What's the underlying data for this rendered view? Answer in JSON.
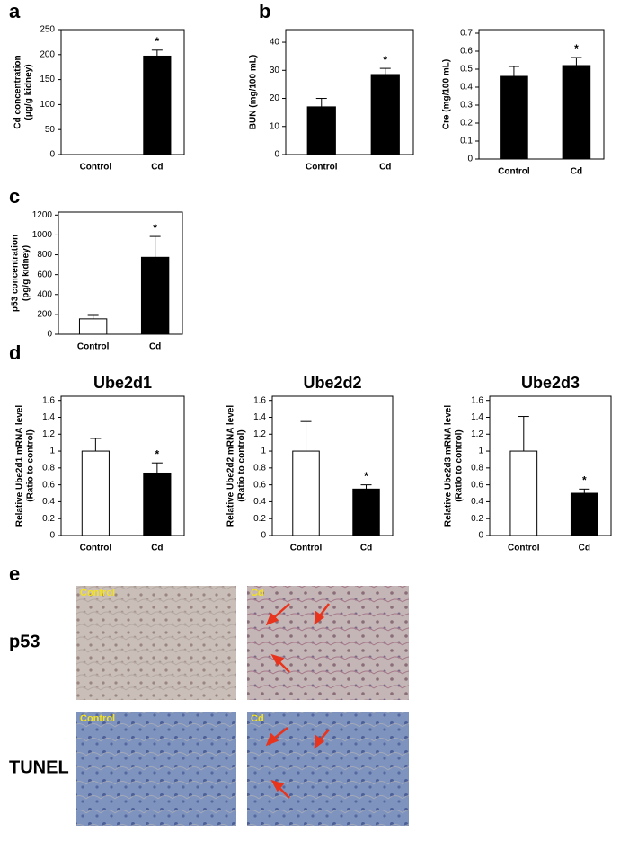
{
  "figure": {
    "panels": [
      "a",
      "b",
      "c",
      "d",
      "e"
    ]
  },
  "chart_data": [
    {
      "type": "bar",
      "ylabel": [
        "Cd concentration",
        "(μg/g kidney)"
      ],
      "categories": [
        "Control",
        "Cd"
      ],
      "values": [
        0,
        197
      ],
      "errors": [
        null,
        12
      ],
      "colors": [
        "#ffffff",
        "#000000"
      ],
      "ylim": [
        0,
        250
      ],
      "yticks": [
        0,
        50,
        100,
        150,
        200,
        250
      ],
      "annotations": [
        {
          "text": "*",
          "category": "Cd"
        }
      ]
    },
    {
      "type": "bar",
      "ylabel": [
        "BUN (mg/100 mL)"
      ],
      "categories": [
        "Control",
        "Cd"
      ],
      "values": [
        17,
        28.5
      ],
      "errors": [
        3,
        2.2
      ],
      "colors": [
        "#000000",
        "#000000"
      ],
      "ylim": [
        0,
        44.5
      ],
      "yticks": [
        0,
        10,
        20,
        30,
        40
      ],
      "annotations": [
        {
          "text": "*",
          "category": "Cd"
        }
      ]
    },
    {
      "type": "bar",
      "ylabel": [
        "Cre (mg/100 mL)"
      ],
      "categories": [
        "Control",
        "Cd"
      ],
      "values": [
        0.46,
        0.52
      ],
      "errors": [
        0.055,
        0.045
      ],
      "colors": [
        "#000000",
        "#000000"
      ],
      "ylim": [
        0,
        0.72
      ],
      "yticks": [
        0,
        0.1,
        0.2,
        0.3,
        0.4,
        0.5,
        0.6,
        0.7
      ],
      "annotations": [
        {
          "text": "*",
          "category": "Cd"
        }
      ]
    },
    {
      "type": "bar",
      "ylabel": [
        "p53 concentration",
        "(pg/g kidney)"
      ],
      "categories": [
        "Control",
        "Cd"
      ],
      "values": [
        155,
        775
      ],
      "errors": [
        35,
        210
      ],
      "colors": [
        "#ffffff",
        "#000000"
      ],
      "ylim": [
        0,
        1230
      ],
      "yticks": [
        0,
        200,
        400,
        600,
        800,
        1000,
        1200
      ],
      "annotations": [
        {
          "text": "*",
          "category": "Cd"
        }
      ]
    },
    {
      "type": "bar",
      "title": "Ube2d1",
      "ylabel": [
        "Relative Ube2d1 mRNA level",
        "(Ratio to control)"
      ],
      "categories": [
        "Control",
        "Cd"
      ],
      "values": [
        1,
        0.74
      ],
      "errors": [
        0.15,
        0.12
      ],
      "colors": [
        "#ffffff",
        "#000000"
      ],
      "ylim": [
        0,
        1.65
      ],
      "yticks": [
        0,
        0.2,
        0.4,
        0.6,
        0.8,
        1,
        1.2,
        1.4,
        1.6
      ],
      "annotations": [
        {
          "text": "*",
          "category": "Cd"
        }
      ]
    },
    {
      "type": "bar",
      "title": "Ube2d2",
      "ylabel": [
        "Relative Ube2d2 mRNA level",
        "(Ratio to control)"
      ],
      "categories": [
        "Control",
        "Cd"
      ],
      "values": [
        1,
        0.55
      ],
      "errors": [
        0.35,
        0.05
      ],
      "colors": [
        "#ffffff",
        "#000000"
      ],
      "ylim": [
        0,
        1.65
      ],
      "yticks": [
        0,
        0.2,
        0.4,
        0.6,
        0.8,
        1,
        1.2,
        1.4,
        1.6
      ],
      "annotations": [
        {
          "text": "*",
          "category": "Cd"
        }
      ]
    },
    {
      "type": "bar",
      "title": "Ube2d3",
      "ylabel": [
        "Relative Ube2d3 mRNA level",
        "(Ratio to control)"
      ],
      "categories": [
        "Control",
        "Cd"
      ],
      "values": [
        1,
        0.5
      ],
      "errors": [
        0.41,
        0.05
      ],
      "colors": [
        "#ffffff",
        "#000000"
      ],
      "ylim": [
        0,
        1.65
      ],
      "yticks": [
        0,
        0.2,
        0.4,
        0.6,
        0.8,
        1,
        1.2,
        1.4,
        1.6
      ],
      "annotations": [
        {
          "text": "*",
          "category": "Cd"
        }
      ]
    }
  ],
  "images": {
    "rows": [
      "p53",
      "TUNEL"
    ],
    "columns": [
      "Control",
      "Cd"
    ]
  }
}
